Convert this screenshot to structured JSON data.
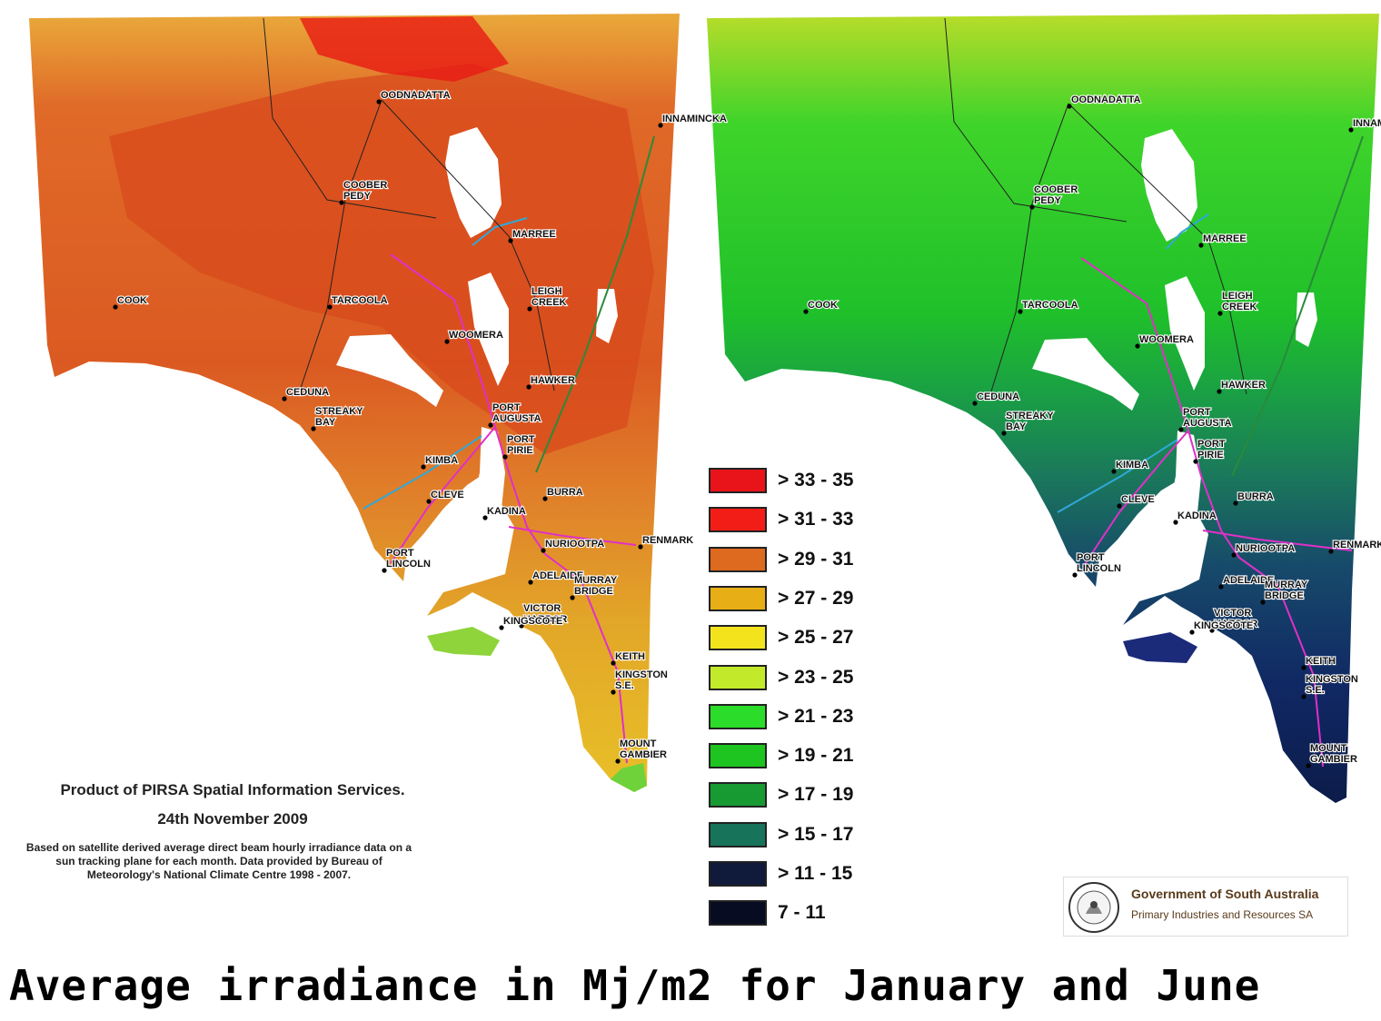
{
  "caption": "Average irradiance in Mj/m2 for January and June",
  "maps": [
    {
      "month": "January",
      "region": "South Australia"
    },
    {
      "month": "June",
      "region": "South Australia"
    }
  ],
  "towns": [
    "OODNADATTA",
    "INNAMINCKA",
    "COOBER PEDY",
    "MARREE",
    "COOK",
    "TARCOOLA",
    "LEIGH CREEK",
    "WOOMERA",
    "HAWKER",
    "CEDUNA",
    "STREAKY BAY",
    "PORT AUGUSTA",
    "KIMBA",
    "PORT PIRIE",
    "CLEVE",
    "BURRA",
    "KADINA",
    "RENMARK",
    "PORT LINCOLN",
    "NURIOOTPA",
    "ADELAIDE",
    "MURRAY BRIDGE",
    "VICTOR HARBOR",
    "KINGSCOTE",
    "KEITH",
    "KINGSTON S.E.",
    "MOUNT GAMBIER"
  ],
  "legend": [
    {
      "label": "> 33 - 35",
      "color": "#e8141a"
    },
    {
      "label": "> 31 - 33",
      "color": "#f21d16"
    },
    {
      "label": "> 29 - 31",
      "color": "#dd6a1e"
    },
    {
      "label": "> 27 - 29",
      "color": "#e8ae16"
    },
    {
      "label": "> 25 - 27",
      "color": "#f3e31d"
    },
    {
      "label": "> 23 - 25",
      "color": "#c3ea2a"
    },
    {
      "label": "> 21 - 23",
      "color": "#2bdc2a"
    },
    {
      "label": "> 19 - 21",
      "color": "#1ec41f"
    },
    {
      "label": "> 17 - 19",
      "color": "#179a32"
    },
    {
      "label": "> 15 - 17",
      "color": "#17735a"
    },
    {
      "label": "> 11 - 15",
      "color": "#101a3a"
    },
    {
      "label": "7 - 11",
      "color": "#070c22"
    }
  ],
  "credit": {
    "title": "Product of PIRSA Spatial Information Services.",
    "date": "24th November 2009",
    "note": "Based on satellite derived average direct beam hourly irradiance data on a sun tracking plane for each month. Data provided by Bureau of Meteorology's National Climate Centre 1998 - 2007."
  },
  "government": {
    "line1": "Government of South Australia",
    "line2": "Primary Industries and Resources SA",
    "seal_text": "SOUTH AUSTRALIA"
  }
}
